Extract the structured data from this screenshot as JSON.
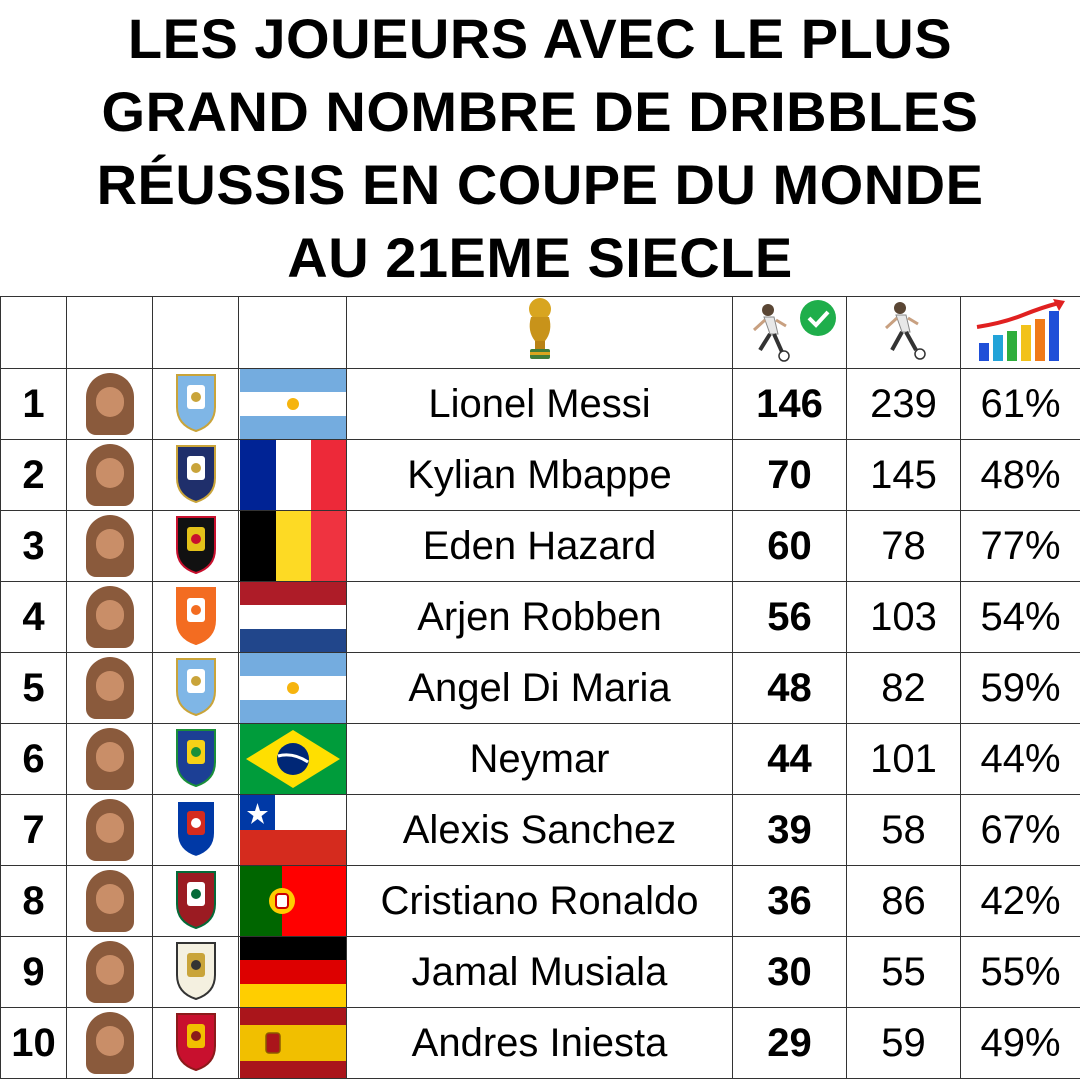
{
  "title_lines": [
    "LES JOUEURS AVEC LE PLUS",
    "GRAND NOMBRE DE DRIBBLES",
    "RÉUSSIS EN COUPE DU MONDE",
    "AU 21EME SIECLE"
  ],
  "header_icons": {
    "trophy": "world-cup-trophy-icon",
    "successful": "dribble-success-icon",
    "attempted": "dribble-attempt-icon",
    "rate": "bar-chart-trend-icon"
  },
  "players": [
    {
      "rank": "1",
      "name": "Lionel Messi",
      "successful": "146",
      "attempted": "239",
      "rate": "61%",
      "team_crest": "argentina-crest-icon",
      "flag": "argentina"
    },
    {
      "rank": "2",
      "name": "Kylian Mbappe",
      "successful": "70",
      "attempted": "145",
      "rate": "48%",
      "team_crest": "france-crest-icon",
      "flag": "france"
    },
    {
      "rank": "3",
      "name": "Eden Hazard",
      "successful": "60",
      "attempted": "78",
      "rate": "77%",
      "team_crest": "belgium-crest-icon",
      "flag": "belgium"
    },
    {
      "rank": "4",
      "name": "Arjen Robben",
      "successful": "56",
      "attempted": "103",
      "rate": "54%",
      "team_crest": "netherlands-crest-icon",
      "flag": "netherlands"
    },
    {
      "rank": "5",
      "name": "Angel Di Maria",
      "successful": "48",
      "attempted": "82",
      "rate": "59%",
      "team_crest": "argentina-crest-icon",
      "flag": "argentina"
    },
    {
      "rank": "6",
      "name": "Neymar",
      "successful": "44",
      "attempted": "101",
      "rate": "44%",
      "team_crest": "brazil-crest-icon",
      "flag": "brazil"
    },
    {
      "rank": "7",
      "name": "Alexis Sanchez",
      "successful": "39",
      "attempted": "58",
      "rate": "67%",
      "team_crest": "chile-crest-icon",
      "flag": "chile"
    },
    {
      "rank": "8",
      "name": "Cristiano Ronaldo",
      "successful": "36",
      "attempted": "86",
      "rate": "42%",
      "team_crest": "portugal-crest-icon",
      "flag": "portugal"
    },
    {
      "rank": "9",
      "name": "Jamal Musiala",
      "successful": "30",
      "attempted": "55",
      "rate": "55%",
      "team_crest": "germany-crest-icon",
      "flag": "germany"
    },
    {
      "rank": "10",
      "name": "Andres Iniesta",
      "successful": "29",
      "attempted": "59",
      "rate": "49%",
      "team_crest": "spain-crest-icon",
      "flag": "spain"
    }
  ]
}
